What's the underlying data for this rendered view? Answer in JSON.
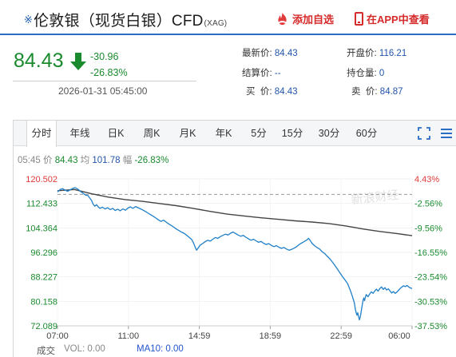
{
  "header": {
    "title_mark": "※",
    "title": "伦敦银（现货白银）CFD",
    "title_sub": "(XAG)",
    "favorite_label": "添加自选",
    "app_label": "在APP中查看"
  },
  "quote": {
    "price": "84.43",
    "change": "-30.96",
    "change_pct": "-26.83%",
    "time": "2026-01-31 05:45:00",
    "latest_label": "最新价:",
    "latest": "84.43",
    "open_label": "开盘价:",
    "open": "116.21",
    "settle_label": "结算价:",
    "settle": "--",
    "position_label": "持仓量:",
    "position": "0",
    "bid_label": "买  价:",
    "bid": "84.43",
    "ask_label": "卖  价:",
    "ask": "84.87"
  },
  "tabs": [
    "分时",
    "年线",
    "日K",
    "周K",
    "月K",
    "年K",
    "5分",
    "15分",
    "30分",
    "60分"
  ],
  "active_tab": 0,
  "infoline": {
    "time": "05:45",
    "price_label": "价",
    "price": "84.43",
    "avg_label": "均",
    "avg": "101.78",
    "amp_label": "幅",
    "amp": "-26.83%"
  },
  "footer": {
    "indicator_label": "成交",
    "vol_label": "VOL: 0.00",
    "ma_label": "MA10: 0.00"
  },
  "watermark": "新浪财经",
  "colors": {
    "up": "#e03a3a",
    "down": "#1a8a2e",
    "price_line": "#1f7fc8",
    "avg_line": "#444444",
    "accent": "#2b6cc4"
  },
  "chart_data": {
    "type": "line",
    "y_ticks": [
      "120.502",
      "112.433",
      "104.364",
      "96.296",
      "88.227",
      "80.158",
      "72.089"
    ],
    "y_right_ticks": [
      "4.43%",
      "-2.56%",
      "-9.56%",
      "-16.55%",
      "-23.54%",
      "-30.53%",
      "-37.53%"
    ],
    "y_right_colors": [
      "up",
      "down",
      "down",
      "down",
      "down",
      "down",
      "down"
    ],
    "ylim": [
      72.089,
      120.502
    ],
    "reference_price": 115.39,
    "x_ticks": [
      "07:00",
      "11:00",
      "14:59",
      "18:59",
      "22:59",
      "06:00"
    ],
    "series": [
      {
        "role": "price",
        "values": [
          [
            0,
            116.2
          ],
          [
            3,
            117.0
          ],
          [
            6,
            117.3
          ],
          [
            9,
            116.8
          ],
          [
            12,
            116.4
          ],
          [
            15,
            116.9
          ],
          [
            18,
            117.4
          ],
          [
            21,
            117.6
          ],
          [
            24,
            117.1
          ],
          [
            27,
            116.4
          ],
          [
            30,
            115.8
          ],
          [
            33,
            115.2
          ],
          [
            36,
            115.0
          ],
          [
            38,
            114.2
          ],
          [
            40,
            113.5
          ],
          [
            42,
            112.2
          ],
          [
            44,
            111.5
          ],
          [
            46,
            112.0
          ],
          [
            48,
            111.3
          ],
          [
            50,
            110.8
          ],
          [
            53,
            111.2
          ],
          [
            56,
            110.6
          ],
          [
            59,
            111.0
          ],
          [
            62,
            110.4
          ],
          [
            65,
            110.8
          ],
          [
            68,
            110.1
          ],
          [
            71,
            110.5
          ],
          [
            74,
            110.0
          ],
          [
            77,
            110.6
          ],
          [
            80,
            110.2
          ],
          [
            83,
            110.9
          ],
          [
            86,
            111.3
          ],
          [
            89,
            110.8
          ],
          [
            92,
            111.4
          ],
          [
            95,
            111.0
          ],
          [
            98,
            110.6
          ],
          [
            101,
            110.2
          ],
          [
            104,
            109.7
          ],
          [
            107,
            109.2
          ],
          [
            110,
            108.7
          ],
          [
            113,
            108.2
          ],
          [
            116,
            107.6
          ],
          [
            119,
            107.0
          ],
          [
            122,
            106.5
          ],
          [
            125,
            106.9
          ],
          [
            128,
            106.3
          ],
          [
            131,
            105.7
          ],
          [
            134,
            105.2
          ],
          [
            137,
            104.6
          ],
          [
            140,
            104.0
          ],
          [
            143,
            103.5
          ],
          [
            146,
            103.0
          ],
          [
            149,
            102.6
          ],
          [
            152,
            102.0
          ],
          [
            155,
            101.3
          ],
          [
            158,
            100.6
          ],
          [
            160,
            99.6
          ],
          [
            162,
            98.2
          ],
          [
            164,
            97.0
          ],
          [
            166,
            97.8
          ],
          [
            168,
            98.6
          ],
          [
            171,
            99.2
          ],
          [
            174,
            99.8
          ],
          [
            177,
            100.3
          ],
          [
            180,
            100.0
          ],
          [
            183,
            100.6
          ],
          [
            186,
            101.2
          ],
          [
            189,
            100.9
          ],
          [
            192,
            101.5
          ],
          [
            195,
            101.9
          ],
          [
            198,
            102.3
          ],
          [
            201,
            102.0
          ],
          [
            204,
            102.6
          ],
          [
            207,
            103.0
          ],
          [
            210,
            102.5
          ],
          [
            213,
            102.0
          ],
          [
            216,
            101.6
          ],
          [
            219,
            101.9
          ],
          [
            222,
            101.3
          ],
          [
            225,
            100.8
          ],
          [
            228,
            100.3
          ],
          [
            231,
            100.6
          ],
          [
            234,
            100.1
          ],
          [
            237,
            99.6
          ],
          [
            240,
            99.9
          ],
          [
            243,
            99.3
          ],
          [
            246,
            98.9
          ],
          [
            249,
            99.2
          ],
          [
            252,
            98.6
          ],
          [
            255,
            98.2
          ],
          [
            258,
            98.5
          ],
          [
            261,
            98.0
          ],
          [
            264,
            97.6
          ],
          [
            267,
            97.9
          ],
          [
            270,
            97.4
          ],
          [
            273,
            97.0
          ],
          [
            276,
            97.3
          ],
          [
            279,
            97.7
          ],
          [
            282,
            98.2
          ],
          [
            285,
            98.9
          ],
          [
            288,
            99.4
          ],
          [
            291,
            99.9
          ],
          [
            294,
            100.4
          ],
          [
            296,
            100.9
          ],
          [
            298,
            100.2
          ],
          [
            300,
            99.3
          ],
          [
            303,
            98.5
          ],
          [
            306,
            97.9
          ],
          [
            309,
            97.4
          ],
          [
            312,
            96.5
          ],
          [
            315,
            95.9
          ],
          [
            318,
            95.0
          ],
          [
            321,
            94.2
          ],
          [
            324,
            93.1
          ],
          [
            327,
            92.0
          ],
          [
            330,
            90.8
          ],
          [
            333,
            89.5
          ],
          [
            336,
            88.3
          ],
          [
            339,
            87.2
          ],
          [
            342,
            86.0
          ],
          [
            344,
            84.6
          ],
          [
            346,
            83.2
          ],
          [
            348,
            81.5
          ],
          [
            350,
            79.6
          ],
          [
            351,
            77.8
          ],
          [
            352,
            76.5
          ],
          [
            353,
            75.6
          ],
          [
            354,
            76.4
          ],
          [
            355,
            75.0
          ],
          [
            356,
            74.1
          ],
          [
            357,
            75.2
          ],
          [
            358,
            76.8
          ],
          [
            359,
            78.5
          ],
          [
            360,
            80.2
          ],
          [
            361,
            81.3
          ],
          [
            362,
            80.4
          ],
          [
            363,
            81.6
          ],
          [
            364,
            82.4
          ],
          [
            366,
            81.7
          ],
          [
            368,
            82.6
          ],
          [
            370,
            83.3
          ],
          [
            372,
            82.8
          ],
          [
            374,
            83.6
          ],
          [
            376,
            84.2
          ],
          [
            378,
            83.5
          ],
          [
            380,
            84.4
          ],
          [
            382,
            84.9
          ],
          [
            384,
            84.1
          ],
          [
            386,
            84.7
          ],
          [
            388,
            83.9
          ],
          [
            390,
            84.3
          ],
          [
            392,
            83.6
          ],
          [
            394,
            82.9
          ],
          [
            396,
            83.4
          ],
          [
            398,
            82.8
          ],
          [
            400,
            83.2
          ],
          [
            402,
            83.8
          ],
          [
            404,
            84.4
          ],
          [
            406,
            84.9
          ],
          [
            408,
            85.3
          ],
          [
            410,
            85.0
          ],
          [
            412,
            85.4
          ],
          [
            414,
            84.9
          ],
          [
            416,
            84.6
          ],
          [
            418,
            84.4
          ]
        ]
      },
      {
        "role": "average",
        "values": [
          [
            0,
            116.6
          ],
          [
            20,
            117.0
          ],
          [
            40,
            115.6
          ],
          [
            60,
            114.5
          ],
          [
            80,
            113.7
          ],
          [
            100,
            113.1
          ],
          [
            120,
            112.4
          ],
          [
            140,
            111.7
          ],
          [
            160,
            110.8
          ],
          [
            180,
            109.8
          ],
          [
            200,
            108.9
          ],
          [
            220,
            108.3
          ],
          [
            240,
            107.7
          ],
          [
            260,
            107.2
          ],
          [
            280,
            106.7
          ],
          [
            300,
            106.3
          ],
          [
            320,
            105.8
          ],
          [
            340,
            105.0
          ],
          [
            360,
            104.0
          ],
          [
            380,
            103.2
          ],
          [
            400,
            102.5
          ],
          [
            418,
            101.8
          ]
        ]
      }
    ]
  }
}
